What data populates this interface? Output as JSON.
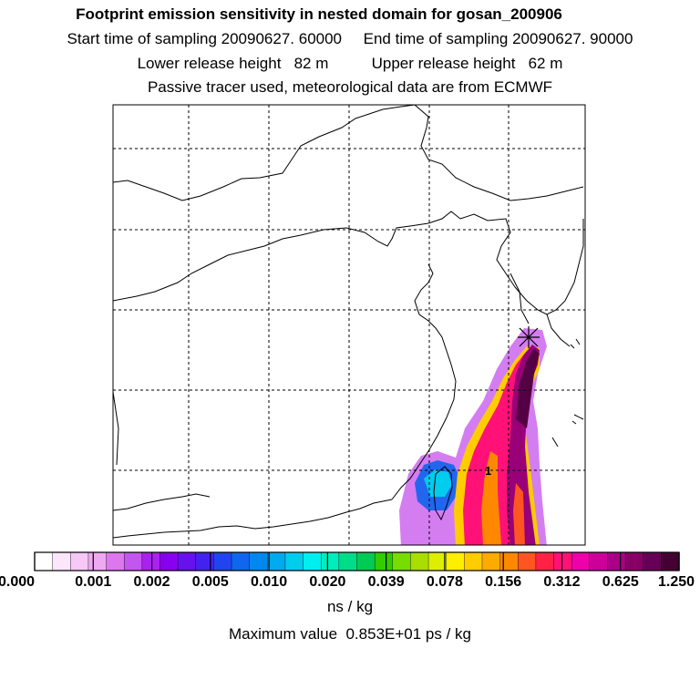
{
  "header": {
    "title": "Footprint emission sensitivity in nested domain for gosan_200906",
    "line2": "Start time of sampling 20090627. 60000     End time of sampling 20090627. 90000",
    "line3": "Lower release height   82 m          Upper release height   62 m",
    "line4": "Passive tracer used, meteorological data are from ECMWF"
  },
  "colorbar": {
    "ticks": [
      "0.000",
      "0.001",
      "0.002",
      "0.005",
      "0.010",
      "0.020",
      "0.039",
      "0.078",
      "0.156",
      "0.312",
      "0.625",
      "1.250"
    ],
    "units": "ns / kg",
    "colors": [
      "#ffffff",
      "#fbe6fb",
      "#f6c8f6",
      "#eeaaf0",
      "#dd77ee",
      "#c455ee",
      "#aa22ee",
      "#8800ee",
      "#6611ee",
      "#4422ee",
      "#2244ee",
      "#1166ee",
      "#0088ee",
      "#00aaee",
      "#00ccee",
      "#00eeee",
      "#00eebb",
      "#00dd88",
      "#00cc55",
      "#33cc00",
      "#77dd00",
      "#aadd00",
      "#ddee00",
      "#ffee00",
      "#ffcc00",
      "#ffaa00",
      "#ff8800",
      "#ff5522",
      "#ff2244",
      "#ff1177",
      "#ee00aa",
      "#cc0099",
      "#aa0088",
      "#880066",
      "#660055",
      "#440033"
    ]
  },
  "footer": {
    "max_value": "Maximum value  0.853E+01 ps / kg"
  },
  "map": {
    "site_marker": "gosan-receptor-marker",
    "site_label": "1"
  }
}
